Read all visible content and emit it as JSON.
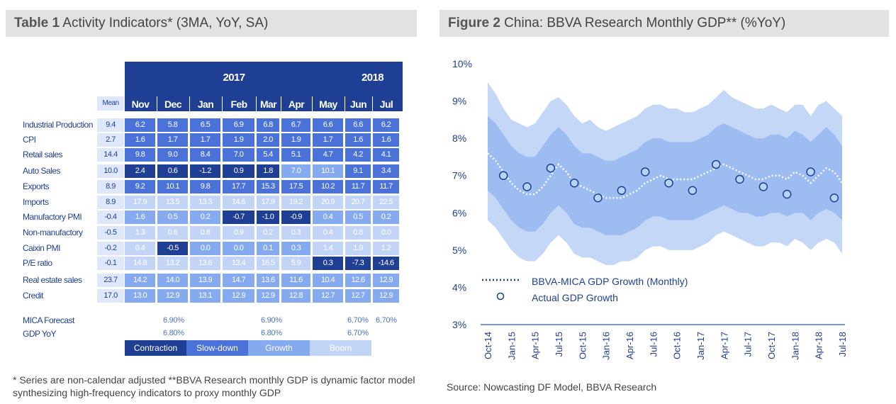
{
  "left_panel": {
    "title_bold": "Table 1",
    "title_rest": " Activity Indicators* (3MA, YoY, SA)",
    "years": [
      {
        "label": "2017"
      },
      {
        "label": "2018"
      }
    ],
    "mean_header": "Mean",
    "months": [
      "Nov",
      "Dec",
      "Jan",
      "Feb",
      "Mar",
      "Apr",
      "May",
      "Jun",
      "Jul"
    ],
    "rows": [
      {
        "label": "Industrial Production",
        "mean": "9.4",
        "values": [
          "6.2",
          "5.8",
          "6.5",
          "6.9",
          "6.8",
          "6.7",
          "6.6",
          "6.6",
          "6.2"
        ],
        "classes": [
          "s",
          "s",
          "s",
          "s",
          "s",
          "s",
          "s",
          "s",
          "s"
        ]
      },
      {
        "label": "CPI",
        "mean": "2.7",
        "values": [
          "1.6",
          "1.7",
          "1.7",
          "1.9",
          "2.0",
          "1.9",
          "1.7",
          "1.6",
          "1.6"
        ],
        "classes": [
          "s",
          "s",
          "s",
          "s",
          "s",
          "s",
          "s",
          "s",
          "s"
        ]
      },
      {
        "label": "Retail sales",
        "mean": "14.4",
        "values": [
          "9.8",
          "9.0",
          "8.4",
          "7.0",
          "5.4",
          "5.1",
          "4.7",
          "4.2",
          "4.1"
        ],
        "classes": [
          "s",
          "s",
          "s",
          "s",
          "s",
          "s",
          "s",
          "s",
          "s"
        ]
      },
      {
        "label": "Auto Sales",
        "mean": "10.0",
        "values": [
          "2.4",
          "0.6",
          "-1.2",
          "0.9",
          "1.8",
          "7.0",
          "10.1",
          "9.1",
          "3.4"
        ],
        "classes": [
          "c",
          "c",
          "c",
          "c",
          "c",
          "g",
          "g",
          "s",
          "s"
        ]
      },
      {
        "label": "Exports",
        "mean": "8.9",
        "values": [
          "9.2",
          "10.1",
          "9.8",
          "17.7",
          "15.3",
          "17.5",
          "10.2",
          "11.7",
          "11.7"
        ],
        "classes": [
          "s",
          "s",
          "s",
          "s",
          "s",
          "s",
          "s",
          "s",
          "s"
        ]
      },
      {
        "label": "Imports",
        "mean": "8.9",
        "values": [
          "17.9",
          "13.5",
          "13.3",
          "14.6",
          "17.9",
          "19.2",
          "20.9",
          "20.7",
          "22.5"
        ],
        "classes": [
          "b",
          "b",
          "b",
          "b",
          "b",
          "b",
          "b",
          "b",
          "b"
        ]
      },
      {
        "label": "Manufactory PMI",
        "mean": "-0.4",
        "values": [
          "1.6",
          "0.5",
          "0.2",
          "-0.7",
          "-1.0",
          "-0.9",
          "0.4",
          "0.5",
          "0.2"
        ],
        "classes": [
          "g",
          "g",
          "g",
          "c",
          "c",
          "c",
          "g",
          "g",
          "g"
        ]
      },
      {
        "label": "Non-manufactory",
        "mean": "-0.5",
        "values": [
          "1.3",
          "0.6",
          "0.8",
          "0.9",
          "0.2",
          "0.3",
          "0.4",
          "0.8",
          "0.0"
        ],
        "classes": [
          "b",
          "b",
          "b",
          "b",
          "b",
          "b",
          "b",
          "b",
          "b"
        ]
      },
      {
        "label": "Caixin PMI",
        "mean": "-0.2",
        "values": [
          "0.4",
          "-0.5",
          "0.0",
          "0.0",
          "0.1",
          "0.3",
          "1.4",
          "1.9",
          "1.2"
        ],
        "classes": [
          "b",
          "c",
          "g",
          "g",
          "g",
          "g",
          "b",
          "b",
          "b"
        ]
      },
      {
        "label": "P/E ratio",
        "mean": "-0.1",
        "values": [
          "14.8",
          "13.2",
          "13.6",
          "13.4",
          "16.5",
          "5.9",
          "0.3",
          "-7.3",
          "-14.6"
        ],
        "classes": [
          "b",
          "b",
          "b",
          "b",
          "b",
          "b",
          "c",
          "c",
          "c"
        ]
      },
      {
        "label": "Real estate sales",
        "mean": "23.7",
        "values": [
          "14.2",
          "14.0",
          "13.9",
          "14.7",
          "13.6",
          "11.6",
          "10.4",
          "12.6",
          "12.9"
        ],
        "classes": [
          "g",
          "g",
          "g",
          "g",
          "g",
          "g",
          "g",
          "g",
          "g"
        ]
      },
      {
        "label": "Credit",
        "mean": "17.0",
        "values": [
          "13.0",
          "12.9",
          "13.1",
          "12.9",
          "12.9",
          "12.8",
          "12.7",
          "12.7",
          "12.9"
        ],
        "classes": [
          "g",
          "g",
          "g",
          "g",
          "g",
          "g",
          "g",
          "g",
          "g"
        ]
      }
    ],
    "mica_forecast_label": "MICA Forecast",
    "gdp_yoy_label": "GDP YoY",
    "mica_forecast": [
      "6.90%",
      "6.90%",
      "6.70%",
      "6.70%"
    ],
    "gdp_yoy": [
      "6.80%",
      "6.80%",
      "6.70%"
    ],
    "legend": [
      "Contraction",
      "Slow-down",
      "Growth",
      "Boom"
    ],
    "footnote": "* Series are non-calendar adjusted **BBVA Research monthly GDP is dynamic factor model synthesizing high-frequency indicators to proxy monthly GDP",
    "colors": {
      "contraction": "#1f3f94",
      "slowdown": "#4a72d8",
      "growth": "#86aaf0",
      "boom": "#c3d5f7"
    }
  },
  "right_panel": {
    "title_bold": "Figure 2",
    "title_rest": " China: BBVA Research Monthly GDP** (%YoY)",
    "source": "Source:  Nowcasting  DF Model, BBVA Research",
    "chart_data": {
      "type": "line",
      "title": "China: BBVA Research Monthly GDP** (%YoY)",
      "x": [
        "Oct-14",
        "Nov-14",
        "Dec-14",
        "Jan-15",
        "Feb-15",
        "Mar-15",
        "Apr-15",
        "May-15",
        "Jun-15",
        "Jul-15",
        "Aug-15",
        "Sep-15",
        "Oct-15",
        "Nov-15",
        "Dec-15",
        "Jan-16",
        "Feb-16",
        "Mar-16",
        "Apr-16",
        "May-16",
        "Jun-16",
        "Jul-16",
        "Aug-16",
        "Sep-16",
        "Oct-16",
        "Nov-16",
        "Dec-16",
        "Jan-17",
        "Feb-17",
        "Mar-17",
        "Apr-17",
        "May-17",
        "Jun-17",
        "Jul-17",
        "Aug-17",
        "Sep-17",
        "Oct-17",
        "Nov-17",
        "Dec-17",
        "Jan-18",
        "Feb-18",
        "Mar-18",
        "Apr-18",
        "May-18",
        "Jun-18",
        "Jul-18"
      ],
      "xticks": [
        "Oct-14",
        "Jan-15",
        "Apr-15",
        "Jul-15",
        "Oct-15",
        "Jan-16",
        "Apr-16",
        "Jul-16",
        "Oct-16",
        "Jan-17",
        "Apr-17",
        "Jul-17",
        "Oct-17",
        "Jan-18",
        "Apr-18",
        "Jul-18"
      ],
      "series": [
        {
          "name": "BBVA-MICA GDP Growth (Monthly)",
          "style": "dotted",
          "values": [
            7.6,
            7.4,
            7.1,
            6.8,
            6.6,
            6.5,
            6.5,
            6.7,
            7.0,
            7.3,
            7.1,
            6.8,
            6.7,
            6.6,
            6.5,
            6.4,
            6.4,
            6.4,
            6.5,
            6.6,
            6.8,
            6.9,
            7.0,
            6.9,
            6.9,
            6.9,
            6.9,
            7.0,
            7.1,
            7.2,
            7.3,
            7.2,
            7.1,
            7.0,
            6.9,
            6.9,
            7.0,
            7.0,
            6.9,
            7.1,
            7.0,
            6.8,
            7.0,
            7.2,
            7.1,
            6.8
          ]
        },
        {
          "name": "Actual GDP Growth",
          "style": "markers",
          "points": [
            {
              "x": "Dec-14",
              "y": 7.0
            },
            {
              "x": "Mar-15",
              "y": 6.7
            },
            {
              "x": "Jun-15",
              "y": 7.2
            },
            {
              "x": "Sep-15",
              "y": 6.8
            },
            {
              "x": "Dec-15",
              "y": 6.4
            },
            {
              "x": "Mar-16",
              "y": 6.6
            },
            {
              "x": "Jun-16",
              "y": 7.1
            },
            {
              "x": "Sep-16",
              "y": 6.8
            },
            {
              "x": "Dec-16",
              "y": 6.6
            },
            {
              "x": "Mar-17",
              "y": 7.3
            },
            {
              "x": "Jun-17",
              "y": 6.9
            },
            {
              "x": "Sep-17",
              "y": 6.7
            },
            {
              "x": "Dec-17",
              "y": 6.5
            },
            {
              "x": "Mar-18",
              "y": 7.1
            },
            {
              "x": "Jun-18",
              "y": 6.4
            }
          ]
        }
      ],
      "bands": {
        "outer_upper": [
          9.5,
          9.2,
          8.8,
          8.5,
          8.4,
          8.3,
          8.4,
          8.7,
          9.0,
          9.1,
          8.9,
          8.6,
          8.4,
          8.5,
          8.3,
          8.2,
          8.3,
          8.4,
          8.5,
          8.6,
          8.8,
          8.9,
          8.9,
          8.8,
          8.8,
          8.7,
          8.7,
          8.8,
          8.9,
          9.1,
          9.3,
          9.1,
          9.0,
          8.9,
          8.8,
          8.8,
          8.9,
          8.8,
          8.7,
          8.9,
          8.9,
          8.6,
          8.9,
          9.0,
          8.8,
          8.6
        ],
        "inner_upper": [
          8.6,
          8.4,
          8.1,
          7.8,
          7.6,
          7.5,
          7.5,
          7.8,
          8.1,
          8.3,
          8.1,
          7.8,
          7.6,
          7.6,
          7.5,
          7.4,
          7.4,
          7.5,
          7.6,
          7.7,
          7.9,
          8.0,
          8.0,
          7.9,
          7.9,
          7.9,
          7.9,
          8.0,
          8.1,
          8.3,
          8.4,
          8.3,
          8.2,
          8.1,
          8.0,
          8.0,
          8.1,
          8.1,
          8.0,
          8.2,
          8.1,
          7.9,
          8.1,
          8.3,
          8.1,
          7.8
        ],
        "inner_lower": [
          6.6,
          6.4,
          6.1,
          5.8,
          5.6,
          5.5,
          5.5,
          5.7,
          6.0,
          6.2,
          6.0,
          5.7,
          5.6,
          5.6,
          5.5,
          5.4,
          5.4,
          5.4,
          5.5,
          5.6,
          5.8,
          5.9,
          5.9,
          5.8,
          5.8,
          5.8,
          5.8,
          5.9,
          6.0,
          6.1,
          6.2,
          6.1,
          6.0,
          6.0,
          5.9,
          5.9,
          6.0,
          6.0,
          5.9,
          6.0,
          6.0,
          5.8,
          6.0,
          6.1,
          6.0,
          5.8
        ],
        "outer_lower": [
          5.8,
          5.6,
          5.3,
          5.0,
          4.8,
          4.7,
          4.7,
          4.9,
          5.2,
          5.4,
          5.2,
          4.9,
          4.8,
          4.8,
          4.7,
          4.6,
          4.6,
          4.7,
          4.7,
          4.8,
          5.0,
          5.1,
          5.1,
          5.0,
          5.0,
          5.0,
          5.0,
          5.1,
          5.2,
          5.4,
          5.5,
          5.4,
          5.3,
          5.2,
          5.1,
          5.1,
          5.2,
          5.2,
          5.1,
          5.3,
          5.2,
          5.0,
          5.2,
          5.3,
          5.2,
          4.9
        ]
      },
      "ylim": [
        3,
        10
      ],
      "yticks": [
        "3%",
        "4%",
        "5%",
        "6%",
        "7%",
        "8%",
        "9%",
        "10%"
      ],
      "legend_placement": "bottom-left",
      "grid": false,
      "colors": {
        "outer_band": "#c5d7f7",
        "inner_band": "#9dbcf2",
        "center_band": "#7ea8ee",
        "dotted_line": "#ffffff",
        "marker_fill": "#b7d3f5",
        "marker_stroke": "#1f3f94",
        "axis_text": "#1f3f94"
      }
    }
  }
}
